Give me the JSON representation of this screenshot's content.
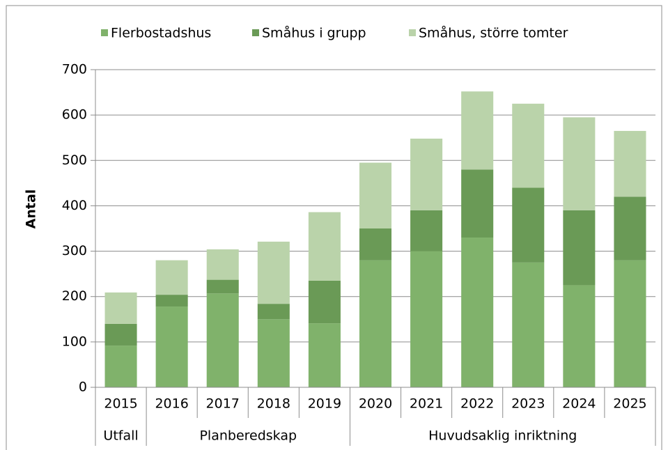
{
  "chart_data": {
    "type": "stacked_bar",
    "y_label": "Antal",
    "groups": [
      {
        "name": "Utfall",
        "categories": [
          "2015"
        ]
      },
      {
        "name": "Planberedskap",
        "categories": [
          "2016",
          "2017",
          "2018",
          "2019"
        ]
      },
      {
        "name": "Huvudsaklig inriktning",
        "categories": [
          "2020",
          "2021",
          "2022",
          "2023",
          "2024",
          "2025"
        ]
      }
    ],
    "series": [
      {
        "name": "Flerbostadshus",
        "color": "#80b26b",
        "values": [
          92,
          178,
          207,
          150,
          141,
          280,
          300,
          330,
          275,
          225,
          280
        ]
      },
      {
        "name": "Småhus i grupp",
        "color": "#6a9a56",
        "values": [
          48,
          26,
          30,
          34,
          94,
          70,
          90,
          150,
          165,
          165,
          140
        ]
      },
      {
        "name": "Småhus, större tomter",
        "color": "#bad3aa",
        "values": [
          69,
          76,
          67,
          137,
          151,
          145,
          158,
          172,
          185,
          205,
          145
        ]
      }
    ],
    "ylim": [
      0,
      700
    ],
    "yticks": [
      0,
      100,
      200,
      300,
      400,
      500,
      600,
      700
    ],
    "grid": true,
    "legend": "top"
  }
}
